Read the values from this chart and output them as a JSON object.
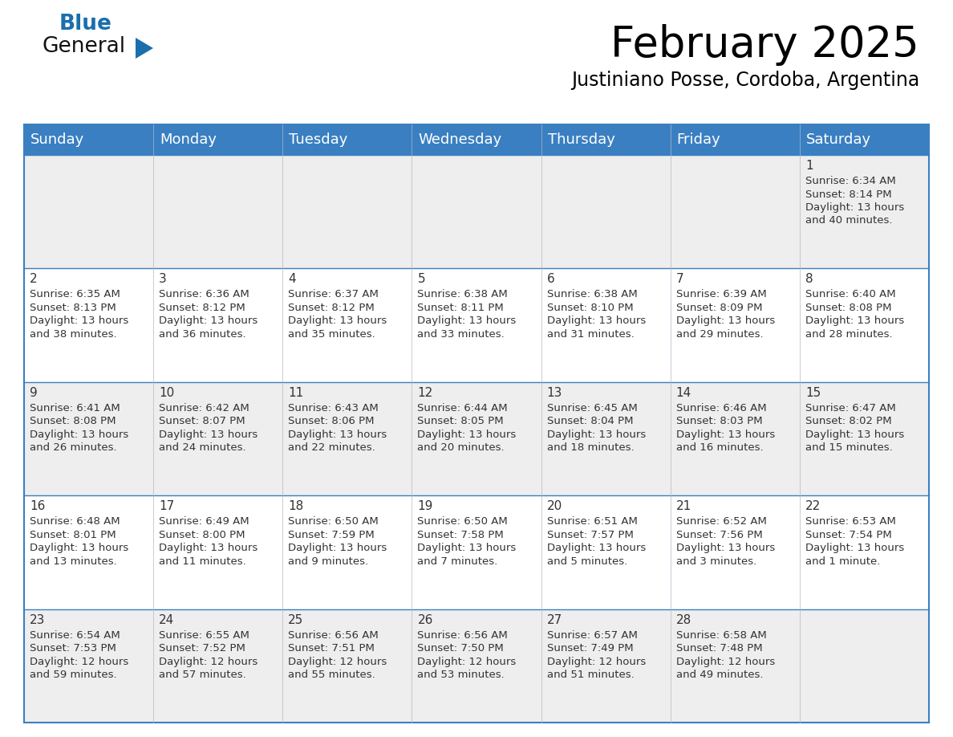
{
  "title": "February 2025",
  "subtitle": "Justiniano Posse, Cordoba, Argentina",
  "header_bg": "#3a7fc1",
  "header_text": "#ffffff",
  "border_color": "#3a7fc1",
  "day_headers": [
    "Sunday",
    "Monday",
    "Tuesday",
    "Wednesday",
    "Thursday",
    "Friday",
    "Saturday"
  ],
  "days": [
    {
      "day": 1,
      "col": 6,
      "row": 0,
      "sunrise": "6:34 AM",
      "sunset": "8:14 PM",
      "daylight": "13 hours and 40 minutes."
    },
    {
      "day": 2,
      "col": 0,
      "row": 1,
      "sunrise": "6:35 AM",
      "sunset": "8:13 PM",
      "daylight": "13 hours and 38 minutes."
    },
    {
      "day": 3,
      "col": 1,
      "row": 1,
      "sunrise": "6:36 AM",
      "sunset": "8:12 PM",
      "daylight": "13 hours and 36 minutes."
    },
    {
      "day": 4,
      "col": 2,
      "row": 1,
      "sunrise": "6:37 AM",
      "sunset": "8:12 PM",
      "daylight": "13 hours and 35 minutes."
    },
    {
      "day": 5,
      "col": 3,
      "row": 1,
      "sunrise": "6:38 AM",
      "sunset": "8:11 PM",
      "daylight": "13 hours and 33 minutes."
    },
    {
      "day": 6,
      "col": 4,
      "row": 1,
      "sunrise": "6:38 AM",
      "sunset": "8:10 PM",
      "daylight": "13 hours and 31 minutes."
    },
    {
      "day": 7,
      "col": 5,
      "row": 1,
      "sunrise": "6:39 AM",
      "sunset": "8:09 PM",
      "daylight": "13 hours and 29 minutes."
    },
    {
      "day": 8,
      "col": 6,
      "row": 1,
      "sunrise": "6:40 AM",
      "sunset": "8:08 PM",
      "daylight": "13 hours and 28 minutes."
    },
    {
      "day": 9,
      "col": 0,
      "row": 2,
      "sunrise": "6:41 AM",
      "sunset": "8:08 PM",
      "daylight": "13 hours and 26 minutes."
    },
    {
      "day": 10,
      "col": 1,
      "row": 2,
      "sunrise": "6:42 AM",
      "sunset": "8:07 PM",
      "daylight": "13 hours and 24 minutes."
    },
    {
      "day": 11,
      "col": 2,
      "row": 2,
      "sunrise": "6:43 AM",
      "sunset": "8:06 PM",
      "daylight": "13 hours and 22 minutes."
    },
    {
      "day": 12,
      "col": 3,
      "row": 2,
      "sunrise": "6:44 AM",
      "sunset": "8:05 PM",
      "daylight": "13 hours and 20 minutes."
    },
    {
      "day": 13,
      "col": 4,
      "row": 2,
      "sunrise": "6:45 AM",
      "sunset": "8:04 PM",
      "daylight": "13 hours and 18 minutes."
    },
    {
      "day": 14,
      "col": 5,
      "row": 2,
      "sunrise": "6:46 AM",
      "sunset": "8:03 PM",
      "daylight": "13 hours and 16 minutes."
    },
    {
      "day": 15,
      "col": 6,
      "row": 2,
      "sunrise": "6:47 AM",
      "sunset": "8:02 PM",
      "daylight": "13 hours and 15 minutes."
    },
    {
      "day": 16,
      "col": 0,
      "row": 3,
      "sunrise": "6:48 AM",
      "sunset": "8:01 PM",
      "daylight": "13 hours and 13 minutes."
    },
    {
      "day": 17,
      "col": 1,
      "row": 3,
      "sunrise": "6:49 AM",
      "sunset": "8:00 PM",
      "daylight": "13 hours and 11 minutes."
    },
    {
      "day": 18,
      "col": 2,
      "row": 3,
      "sunrise": "6:50 AM",
      "sunset": "7:59 PM",
      "daylight": "13 hours and 9 minutes."
    },
    {
      "day": 19,
      "col": 3,
      "row": 3,
      "sunrise": "6:50 AM",
      "sunset": "7:58 PM",
      "daylight": "13 hours and 7 minutes."
    },
    {
      "day": 20,
      "col": 4,
      "row": 3,
      "sunrise": "6:51 AM",
      "sunset": "7:57 PM",
      "daylight": "13 hours and 5 minutes."
    },
    {
      "day": 21,
      "col": 5,
      "row": 3,
      "sunrise": "6:52 AM",
      "sunset": "7:56 PM",
      "daylight": "13 hours and 3 minutes."
    },
    {
      "day": 22,
      "col": 6,
      "row": 3,
      "sunrise": "6:53 AM",
      "sunset": "7:54 PM",
      "daylight": "13 hours and 1 minute."
    },
    {
      "day": 23,
      "col": 0,
      "row": 4,
      "sunrise": "6:54 AM",
      "sunset": "7:53 PM",
      "daylight": "12 hours and 59 minutes."
    },
    {
      "day": 24,
      "col": 1,
      "row": 4,
      "sunrise": "6:55 AM",
      "sunset": "7:52 PM",
      "daylight": "12 hours and 57 minutes."
    },
    {
      "day": 25,
      "col": 2,
      "row": 4,
      "sunrise": "6:56 AM",
      "sunset": "7:51 PM",
      "daylight": "12 hours and 55 minutes."
    },
    {
      "day": 26,
      "col": 3,
      "row": 4,
      "sunrise": "6:56 AM",
      "sunset": "7:50 PM",
      "daylight": "12 hours and 53 minutes."
    },
    {
      "day": 27,
      "col": 4,
      "row": 4,
      "sunrise": "6:57 AM",
      "sunset": "7:49 PM",
      "daylight": "12 hours and 51 minutes."
    },
    {
      "day": 28,
      "col": 5,
      "row": 4,
      "sunrise": "6:58 AM",
      "sunset": "7:48 PM",
      "daylight": "12 hours and 49 minutes."
    }
  ],
  "num_rows": 5,
  "num_cols": 7,
  "logo_general_color": "#1a1a1a",
  "logo_blue_color": "#1a6fad",
  "logo_triangle_color": "#1a6fad",
  "title_fontsize": 38,
  "subtitle_fontsize": 17,
  "header_fontsize": 13,
  "day_number_fontsize": 11,
  "cell_text_fontsize": 9.5,
  "row_colors": [
    "#eeeeee",
    "#ffffff",
    "#eeeeee",
    "#ffffff",
    "#eeeeee"
  ]
}
